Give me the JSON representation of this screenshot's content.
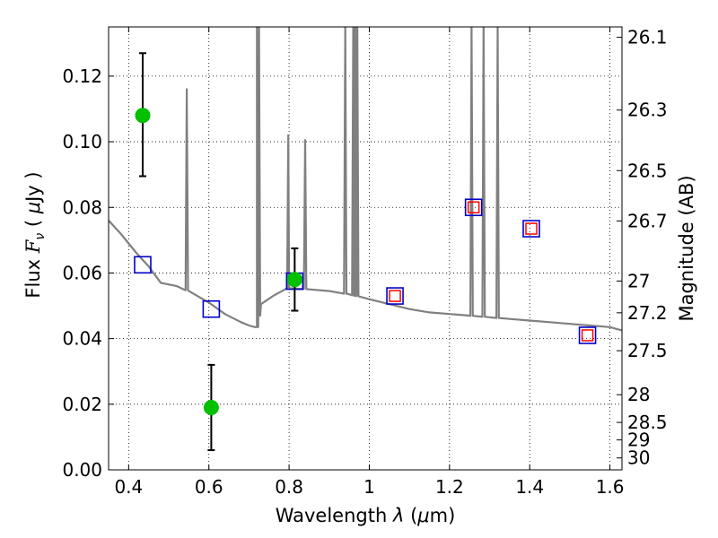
{
  "chart_data": {
    "type": "scatter",
    "xlim": [
      0.35,
      1.63
    ],
    "ylim": [
      0,
      0.135
    ],
    "grid": true,
    "x_ticks": [
      0.4,
      0.6,
      0.8,
      1.0,
      1.2,
      1.4,
      1.6
    ],
    "x_tick_labels": [
      "0.4",
      "0.6",
      "0.8",
      "1",
      "1.2",
      "1.4",
      "1.6"
    ],
    "y_ticks": [
      0,
      0.02,
      0.04,
      0.06,
      0.08,
      0.1,
      0.12
    ],
    "y_tick_labels": [
      "0.00",
      "0.02",
      "0.04",
      "0.06",
      "0.08",
      "0.10",
      "0.12"
    ],
    "right_ticks": [
      {
        "label": "26.1",
        "mag": 26.1
      },
      {
        "label": "26.3",
        "mag": 26.3
      },
      {
        "label": "26.5",
        "mag": 26.5
      },
      {
        "label": "26.7",
        "mag": 26.7
      },
      {
        "label": "27",
        "mag": 27.0
      },
      {
        "label": "27.2",
        "mag": 27.2
      },
      {
        "label": "27.5",
        "mag": 27.5
      },
      {
        "label": "28",
        "mag": 28.0
      },
      {
        "label": "28.5",
        "mag": 28.5
      },
      {
        "label": "29",
        "mag": 29.0
      },
      {
        "label": "30",
        "mag": 30.0
      }
    ],
    "xlabel": {
      "pre": "Wavelength ",
      "sym": "λ",
      "mid": " (",
      "unit": "μ",
      "post": "m)"
    },
    "ylabel": {
      "pre": "Flux ",
      "sym": "F",
      "sub": "ν",
      "mid": " ( ",
      "unit": "μ",
      "post": "Jy )"
    },
    "ylabel_right": "Magnitude (AB)",
    "series": [
      {
        "kind": "model_spectrum",
        "color": "#808080",
        "continuum": [
          [
            0.35,
            0.076
          ],
          [
            0.38,
            0.072
          ],
          [
            0.42,
            0.066
          ],
          [
            0.45,
            0.062
          ],
          [
            0.48,
            0.057
          ],
          [
            0.52,
            0.056
          ],
          [
            0.55,
            0.0545
          ],
          [
            0.6,
            0.051
          ],
          [
            0.64,
            0.0475
          ],
          [
            0.68,
            0.045
          ],
          [
            0.7,
            0.044
          ],
          [
            0.715,
            0.0435
          ],
          [
            0.72,
            0.0435
          ],
          [
            0.73,
            0.0505
          ],
          [
            0.76,
            0.053
          ],
          [
            0.8,
            0.0555
          ],
          [
            0.85,
            0.055
          ],
          [
            0.9,
            0.0545
          ],
          [
            0.95,
            0.0535
          ],
          [
            1.0,
            0.052
          ],
          [
            1.05,
            0.0505
          ],
          [
            1.1,
            0.049
          ],
          [
            1.15,
            0.048
          ],
          [
            1.2,
            0.0475
          ],
          [
            1.25,
            0.047
          ],
          [
            1.3,
            0.0465
          ],
          [
            1.35,
            0.046
          ],
          [
            1.4,
            0.0455
          ],
          [
            1.45,
            0.045
          ],
          [
            1.5,
            0.0445
          ],
          [
            1.55,
            0.044
          ],
          [
            1.6,
            0.0435
          ],
          [
            1.63,
            0.0425
          ]
        ],
        "emission_lines": [
          [
            0.545,
            0.116
          ],
          [
            0.72,
            0.135
          ],
          [
            0.725,
            0.135
          ],
          [
            0.798,
            0.102
          ],
          [
            0.84,
            0.1005
          ],
          [
            0.94,
            0.135
          ],
          [
            0.96,
            0.135
          ],
          [
            0.965,
            0.135
          ],
          [
            0.97,
            0.135
          ],
          [
            1.255,
            0.135
          ],
          [
            1.285,
            0.135
          ],
          [
            1.32,
            0.135
          ]
        ]
      },
      {
        "kind": "observed_flux",
        "color": "#00c000",
        "points": [
          {
            "x": 0.435,
            "y": 0.108,
            "err_low": 0.0895,
            "err_high": 0.127
          },
          {
            "x": 0.606,
            "y": 0.019,
            "err_low": 0.006,
            "err_high": 0.032
          },
          {
            "x": 0.814,
            "y": 0.058,
            "err_low": 0.0485,
            "err_high": 0.0675
          }
        ]
      },
      {
        "kind": "model_band_flux",
        "color": "#0000cc",
        "points": [
          [
            0.435,
            0.0625
          ],
          [
            0.606,
            0.049
          ],
          [
            0.814,
            0.0575
          ],
          [
            1.064,
            0.053
          ],
          [
            1.26,
            0.08
          ],
          [
            1.404,
            0.0735
          ],
          [
            1.544,
            0.041
          ]
        ]
      },
      {
        "kind": "predicted_flux",
        "color": "#ff0000",
        "points": [
          [
            1.064,
            0.053
          ],
          [
            1.26,
            0.08
          ],
          [
            1.404,
            0.0735
          ],
          [
            1.544,
            0.041
          ]
        ]
      }
    ]
  }
}
